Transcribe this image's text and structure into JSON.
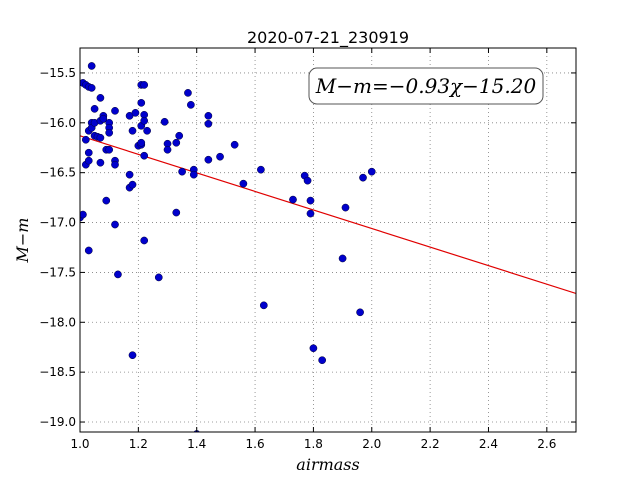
{
  "chart_data": {
    "type": "scatter",
    "title": "2020-07-21_230919",
    "xlabel": "airmass",
    "ylabel": "M−m",
    "xlim": [
      1.0,
      2.7
    ],
    "ylim": [
      -19.1,
      -15.25
    ],
    "x_ticks": [
      "1.0",
      "1.2",
      "1.4",
      "1.6",
      "1.8",
      "2.0",
      "2.2",
      "2.4",
      "2.6"
    ],
    "y_ticks": [
      "−15.5",
      "−16.0",
      "−16.5",
      "−17.0",
      "−17.5",
      "−18.0",
      "−18.5",
      "−19.0"
    ],
    "grid": true,
    "annotation": "M−m=−0.93χ−15.20",
    "fit": {
      "slope": -0.93,
      "intercept": -15.2,
      "color": "#e00000"
    },
    "point_color": "#0000cc",
    "points": [
      [
        1.0,
        -16.95
      ],
      [
        1.01,
        -15.6
      ],
      [
        1.01,
        -16.92
      ],
      [
        1.02,
        -15.62
      ],
      [
        1.02,
        -16.17
      ],
      [
        1.02,
        -16.42
      ],
      [
        1.03,
        -15.64
      ],
      [
        1.03,
        -16.08
      ],
      [
        1.03,
        -16.3
      ],
      [
        1.03,
        -16.38
      ],
      [
        1.03,
        -17.28
      ],
      [
        1.04,
        -15.43
      ],
      [
        1.04,
        -15.65
      ],
      [
        1.04,
        -16.0
      ],
      [
        1.04,
        -16.05
      ],
      [
        1.05,
        -15.86
      ],
      [
        1.05,
        -16.0
      ],
      [
        1.05,
        -16.13
      ],
      [
        1.06,
        -16.14
      ],
      [
        1.07,
        -15.75
      ],
      [
        1.07,
        -15.98
      ],
      [
        1.07,
        -16.15
      ],
      [
        1.07,
        -16.4
      ],
      [
        1.08,
        -15.93
      ],
      [
        1.08,
        -15.96
      ],
      [
        1.09,
        -16.27
      ],
      [
        1.09,
        -16.78
      ],
      [
        1.1,
        -16.0
      ],
      [
        1.1,
        -16.05
      ],
      [
        1.1,
        -16.1
      ],
      [
        1.1,
        -16.27
      ],
      [
        1.12,
        -15.88
      ],
      [
        1.12,
        -16.38
      ],
      [
        1.12,
        -16.42
      ],
      [
        1.12,
        -17.02
      ],
      [
        1.13,
        -17.52
      ],
      [
        1.17,
        -15.93
      ],
      [
        1.17,
        -16.52
      ],
      [
        1.17,
        -16.65
      ],
      [
        1.18,
        -16.08
      ],
      [
        1.18,
        -16.62
      ],
      [
        1.18,
        -18.33
      ],
      [
        1.19,
        -15.9
      ],
      [
        1.2,
        -16.23
      ],
      [
        1.21,
        -15.62
      ],
      [
        1.21,
        -15.8
      ],
      [
        1.21,
        -16.03
      ],
      [
        1.21,
        -16.22
      ],
      [
        1.21,
        -16.2
      ],
      [
        1.22,
        -15.62
      ],
      [
        1.22,
        -15.92
      ],
      [
        1.22,
        -15.98
      ],
      [
        1.22,
        -16.33
      ],
      [
        1.22,
        -17.18
      ],
      [
        1.23,
        -16.08
      ],
      [
        1.27,
        -17.55
      ],
      [
        1.29,
        -15.99
      ],
      [
        1.3,
        -16.21
      ],
      [
        1.3,
        -16.27
      ],
      [
        1.33,
        -16.2
      ],
      [
        1.33,
        -16.9
      ],
      [
        1.34,
        -16.13
      ],
      [
        1.35,
        -16.49
      ],
      [
        1.37,
        -15.7
      ],
      [
        1.38,
        -15.82
      ],
      [
        1.39,
        -16.47
      ],
      [
        1.39,
        -16.52
      ],
      [
        1.4,
        -19.12
      ],
      [
        1.44,
        -16.37
      ],
      [
        1.44,
        -15.93
      ],
      [
        1.44,
        -16.01
      ],
      [
        1.48,
        -16.34
      ],
      [
        1.53,
        -16.22
      ],
      [
        1.56,
        -16.61
      ],
      [
        1.62,
        -16.47
      ],
      [
        1.63,
        -17.83
      ],
      [
        1.73,
        -16.77
      ],
      [
        1.77,
        -16.53
      ],
      [
        1.78,
        -16.58
      ],
      [
        1.79,
        -16.78
      ],
      [
        1.79,
        -16.91
      ],
      [
        1.8,
        -18.26
      ],
      [
        1.83,
        -18.38
      ],
      [
        1.9,
        -17.36
      ],
      [
        1.91,
        -16.85
      ],
      [
        1.96,
        -17.9
      ],
      [
        1.97,
        -16.55
      ],
      [
        2.0,
        -16.49
      ]
    ]
  }
}
